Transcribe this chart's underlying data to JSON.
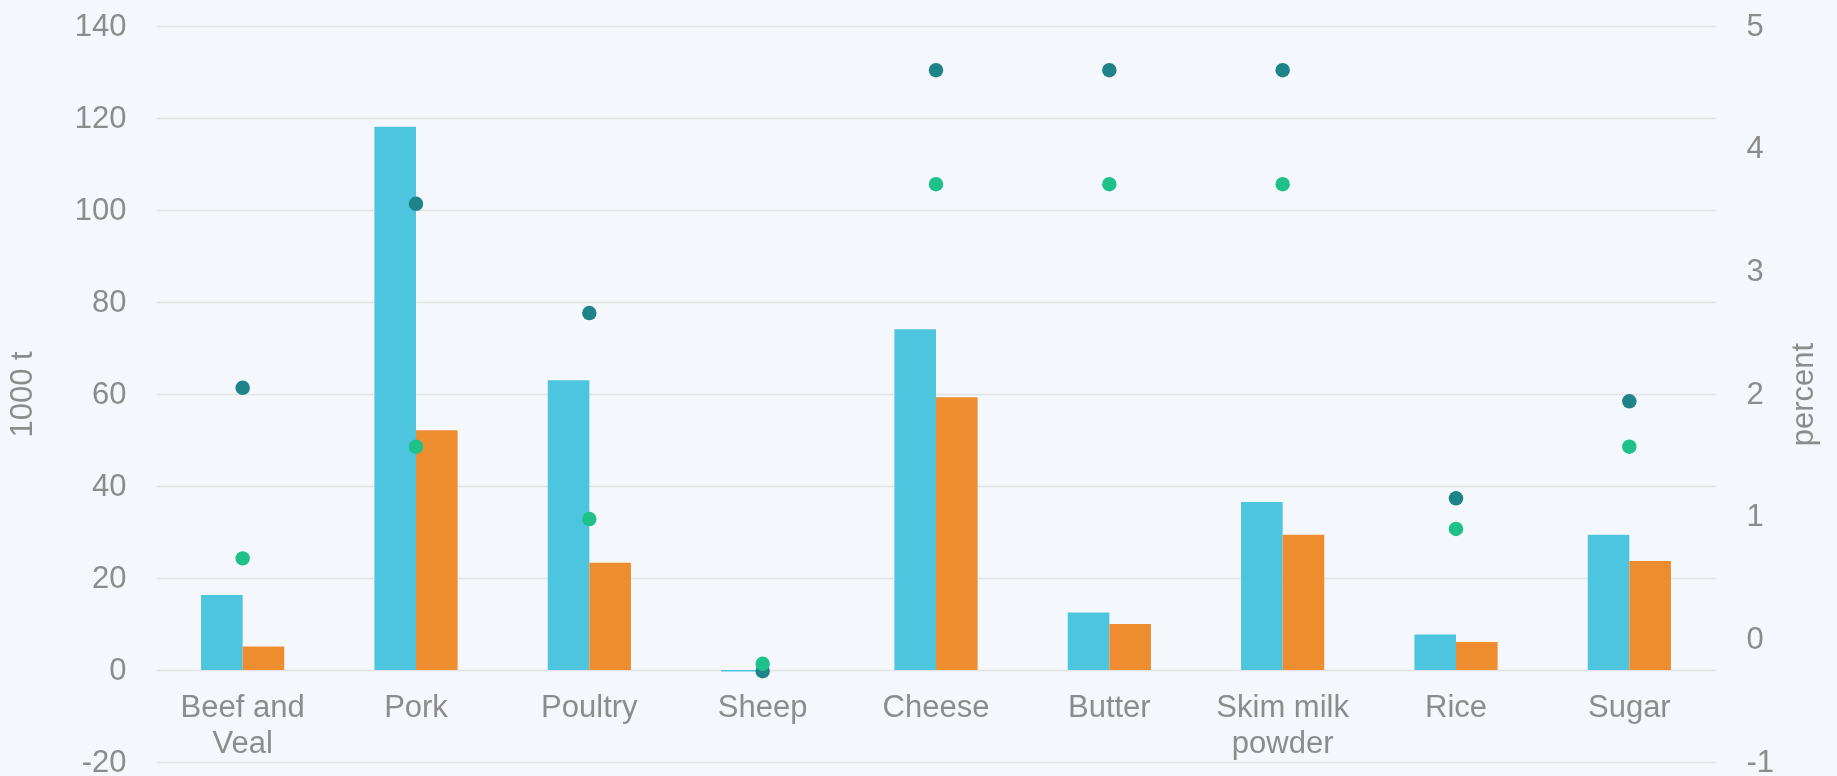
{
  "chart_data": {
    "type": "bar",
    "categories": [
      "Beef and Veal",
      "Pork",
      "Poultry",
      "Sheep",
      "Cheese",
      "Butter",
      "Skim milk powder",
      "Rice",
      "Sugar"
    ],
    "series": [
      {
        "color": "#4dc5de",
        "values": [
          16.3,
          118.1,
          63.0,
          -0.3,
          74.1,
          12.5,
          36.5,
          7.7,
          29.4
        ]
      },
      {
        "color": "#ee8c30",
        "values": [
          5.1,
          52.1,
          23.3,
          null,
          59.3,
          10.0,
          29.4,
          6.1,
          23.7
        ]
      },
      {
        "type": "scatter",
        "axis": "y2",
        "color": "#1e8489",
        "values": [
          2.05,
          3.55,
          2.66,
          -0.26,
          4.64,
          4.64,
          4.64,
          1.15,
          1.94
        ]
      },
      {
        "type": "scatter",
        "axis": "y2",
        "color": "#1fc18b",
        "values": [
          0.66,
          1.57,
          0.98,
          -0.2,
          3.71,
          3.71,
          3.71,
          0.9,
          1.57
        ]
      }
    ],
    "ylabel": "1000 t",
    "y2label": "percent",
    "ylim": [
      -20,
      140
    ],
    "yticks": [
      -20,
      0,
      20,
      40,
      60,
      80,
      100,
      120,
      140
    ],
    "y2lim": [
      -1,
      5
    ],
    "y2ticks": [
      -1,
      0,
      1,
      2,
      3,
      4,
      5
    ],
    "grid": "y",
    "marker": "circle"
  }
}
